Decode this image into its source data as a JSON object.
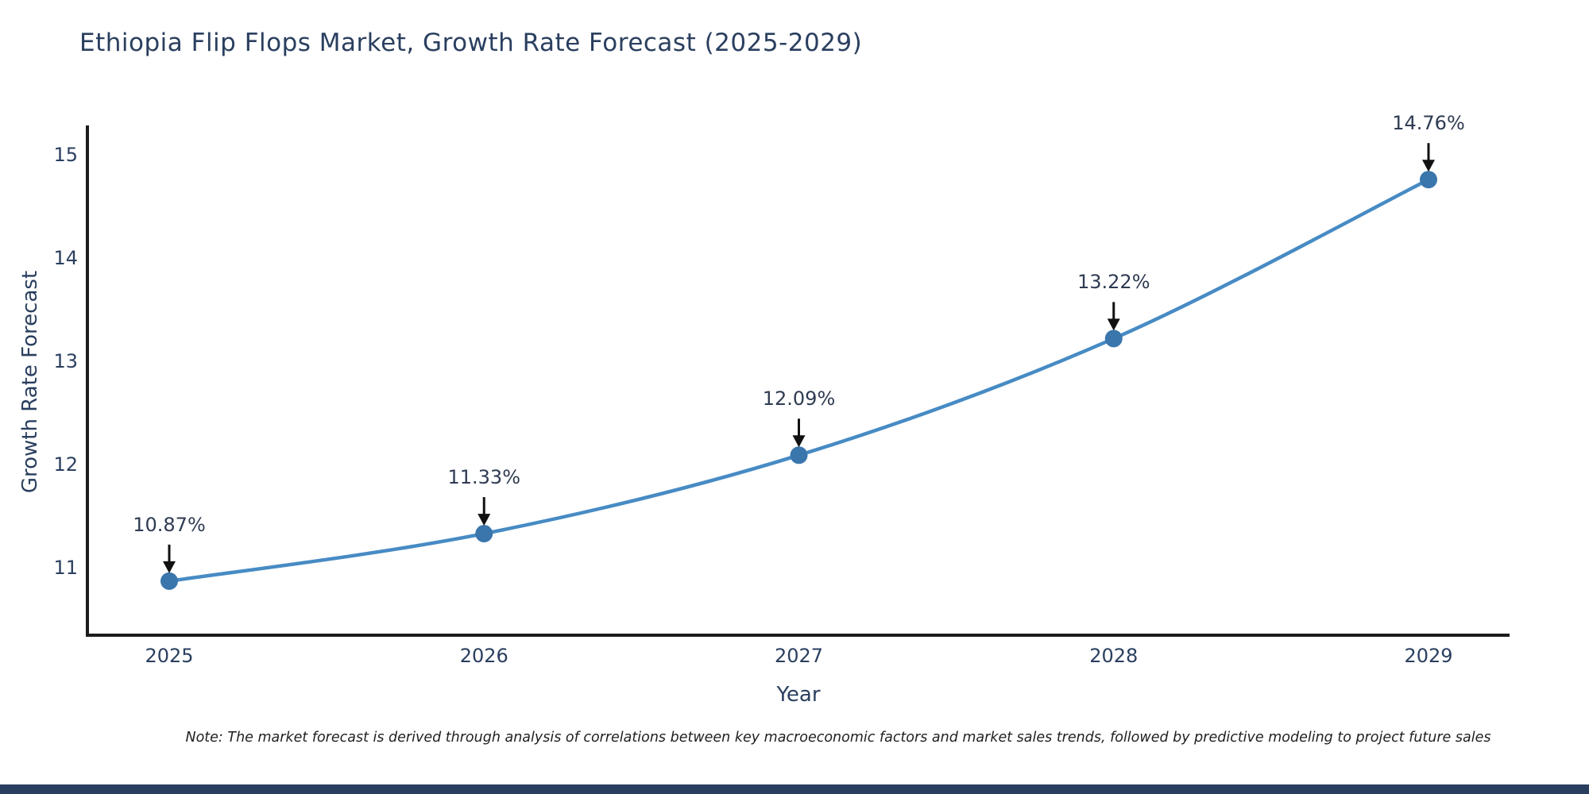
{
  "page": {
    "note": "Note: The market forecast is derived through analysis of correlations between key macroeconomic factors and market sales trends, followed by predictive modeling to project future sales"
  },
  "chart_data": {
    "type": "line",
    "title": "Ethiopia Flip Flops Market, Growth Rate Forecast (2025-2029)",
    "xlabel": "Year",
    "ylabel": "Growth Rate Forecast",
    "x": [
      2025,
      2026,
      2027,
      2028,
      2029
    ],
    "y": [
      10.87,
      11.33,
      12.09,
      13.22,
      14.76
    ],
    "point_labels": [
      "10.87%",
      "11.33%",
      "12.09%",
      "13.22%",
      "14.76%"
    ],
    "yticks": [
      11,
      12,
      13,
      14,
      15
    ],
    "xticks": [
      "2025",
      "2026",
      "2027",
      "2028",
      "2029"
    ],
    "xlim": [
      2024.74,
      2029.26
    ],
    "ylim": [
      10.35,
      15.28
    ],
    "grid": false,
    "legend": "none",
    "line_color": "#478bc4",
    "marker_color": "#3a76ac",
    "axis_color": "#1c1c1c",
    "text_color": "#2a3f5f",
    "annotation_color": "#2f3b52",
    "arrow_color": "#111111",
    "bottom_bar_color": "#2a3f5f"
  }
}
